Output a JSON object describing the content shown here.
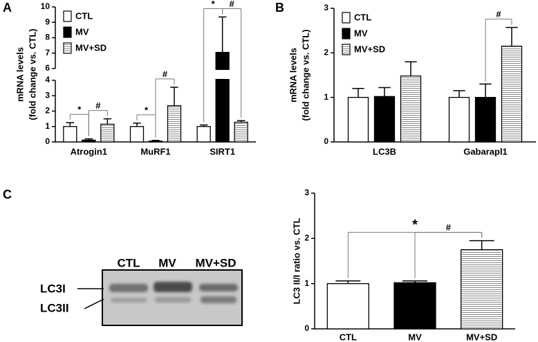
{
  "panel_labels": [
    "A",
    "B",
    "C"
  ],
  "blot": {
    "lanes": [
      "CTL",
      "MV",
      "MV+SD"
    ],
    "bands": [
      "LC3I",
      "LC3II"
    ]
  },
  "chart_data": [
    {
      "type": "bar",
      "ylabel": [
        "mRNA levels",
        "(fold change vs. CTL)"
      ],
      "categories": [
        "Atrogin1",
        "MuRF1",
        "SIRT1"
      ],
      "series": [
        {
          "name": "CTL",
          "color": "#ffffff",
          "values": [
            1.0,
            1.0,
            1.0
          ],
          "errors": [
            0.25,
            0.22,
            0.1
          ]
        },
        {
          "name": "MV",
          "color": "#000000",
          "values": [
            0.12,
            0.05,
            7.05
          ],
          "errors": [
            0.08,
            0.05,
            2.3
          ]
        },
        {
          "name": "MV+SD",
          "color": "#ffffff",
          "hatch": "horizontal",
          "values": [
            1.15,
            2.35,
            1.28
          ],
          "errors": [
            0.35,
            1.2,
            0.1
          ]
        }
      ],
      "ylim": [
        0,
        10
      ],
      "ybreak": [
        4,
        6
      ],
      "yticks": [
        0,
        1,
        2,
        3,
        4,
        6,
        7,
        8,
        9,
        10
      ],
      "legend": "upper left",
      "annotations": [
        {
          "text": "*",
          "between": [
            [
              0,
              0
            ],
            [
              0,
              1
            ]
          ]
        },
        {
          "text": "#",
          "between": [
            [
              0,
              1
            ],
            [
              0,
              2
            ]
          ]
        },
        {
          "text": "*",
          "between": [
            [
              1,
              0
            ],
            [
              1,
              1
            ]
          ]
        },
        {
          "text": "#",
          "between": [
            [
              1,
              1
            ],
            [
              1,
              2
            ]
          ]
        },
        {
          "text": "*",
          "between": [
            [
              2,
              0
            ],
            [
              2,
              1
            ]
          ]
        },
        {
          "text": "#",
          "between": [
            [
              2,
              1
            ],
            [
              2,
              2
            ]
          ]
        }
      ]
    },
    {
      "type": "bar",
      "ylabel": [
        "mRNA levels",
        "(fold change vs. CTL)"
      ],
      "categories": [
        "LC3B",
        "Gabarapl1"
      ],
      "series": [
        {
          "name": "CTL",
          "color": "#ffffff",
          "values": [
            1.0,
            1.0
          ],
          "errors": [
            0.2,
            0.15
          ]
        },
        {
          "name": "MV",
          "color": "#000000",
          "values": [
            1.02,
            1.0
          ],
          "errors": [
            0.2,
            0.3
          ]
        },
        {
          "name": "MV+SD",
          "color": "#ffffff",
          "hatch": "horizontal",
          "values": [
            1.48,
            2.15
          ],
          "errors": [
            0.32,
            0.42
          ]
        }
      ],
      "ylim": [
        0,
        3
      ],
      "yticks": [
        0,
        1,
        2,
        3
      ],
      "legend": "upper left",
      "annotations": [
        {
          "text": "#",
          "between": [
            [
              1,
              1
            ],
            [
              1,
              2
            ]
          ]
        }
      ]
    },
    {
      "type": "bar",
      "ylabel": [
        "LC3 II/I ratio vs. CTL"
      ],
      "categories": [
        "CTL",
        "MV",
        "MV+SD"
      ],
      "values": [
        1.0,
        1.02,
        1.75
      ],
      "errors": [
        0.06,
        0.04,
        0.2
      ],
      "colors": [
        "#ffffff",
        "#000000",
        "#ffffff"
      ],
      "hatched": [
        false,
        false,
        true
      ],
      "ylim": [
        0,
        3
      ],
      "yticks": [
        0,
        1,
        2,
        3
      ],
      "annotations": [
        {
          "text": "*",
          "between": [
            0,
            2
          ]
        },
        {
          "text": "#",
          "between": [
            1,
            2
          ]
        }
      ]
    }
  ]
}
